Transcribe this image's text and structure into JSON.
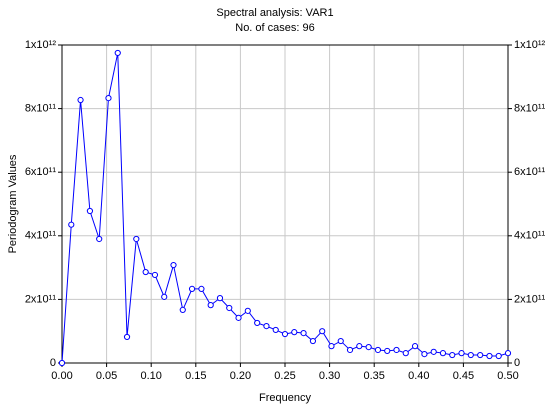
{
  "chart_data": {
    "type": "line",
    "title": "Spectral analysis: VAR1",
    "subtitle": "No. of cases: 96",
    "xlabel": "Frequency",
    "ylabel": "Periodogram Values",
    "x": [
      0,
      0.0104,
      0.0208,
      0.0313,
      0.0417,
      0.0521,
      0.0625,
      0.0729,
      0.0833,
      0.0938,
      0.1042,
      0.1146,
      0.125,
      0.1354,
      0.1458,
      0.1563,
      0.1667,
      0.1771,
      0.1875,
      0.1979,
      0.2083,
      0.2188,
      0.2292,
      0.2396,
      0.25,
      0.2604,
      0.2708,
      0.2813,
      0.2917,
      0.3021,
      0.3125,
      0.3229,
      0.3333,
      0.3438,
      0.3542,
      0.3646,
      0.375,
      0.3854,
      0.3958,
      0.4063,
      0.4167,
      0.4271,
      0.4375,
      0.4479,
      0.4583,
      0.4688,
      0.4792,
      0.4896,
      0.5
    ],
    "series": [
      {
        "name": "VAR1",
        "color": "#0000ff",
        "values": [
          0,
          435000000000.0,
          827000000000.0,
          478000000000.0,
          390000000000.0,
          833000000000.0,
          975000000000.0,
          82000000000.0,
          390000000000.0,
          286000000000.0,
          277000000000.0,
          208000000000.0,
          308000000000.0,
          167000000000.0,
          233000000000.0,
          233000000000.0,
          182000000000.0,
          204000000000.0,
          173000000000.0,
          142000000000.0,
          164000000000.0,
          126000000000.0,
          116000000000.0,
          104000000000.0,
          91000000000.0,
          97000000000.0,
          94000000000.0,
          69000000000.0,
          100000000000.0,
          53000000000.0,
          69000000000.0,
          41000000000.0,
          53000000000.0,
          50000000000.0,
          41000000000.0,
          38000000000.0,
          41000000000.0,
          31000000000.0,
          53000000000.0,
          28000000000.0,
          35000000000.0,
          31000000000.0,
          25000000000.0,
          31000000000.0,
          25000000000.0,
          25000000000.0,
          22000000000.0,
          22000000000.0,
          31000000000.0
        ]
      }
    ],
    "xlim": [
      0,
      0.5
    ],
    "xticks": [
      {
        "value": 0,
        "label": "0.00"
      },
      {
        "value": 0.05,
        "label": "0.05"
      },
      {
        "value": 0.1,
        "label": "0.10"
      },
      {
        "value": 0.15,
        "label": "0.15"
      },
      {
        "value": 0.2,
        "label": "0.20"
      },
      {
        "value": 0.25,
        "label": "0.25"
      },
      {
        "value": 0.3,
        "label": "0.30"
      },
      {
        "value": 0.35,
        "label": "0.35"
      },
      {
        "value": 0.4,
        "label": "0.40"
      },
      {
        "value": 0.45,
        "label": "0.45"
      },
      {
        "value": 0.5,
        "label": "0.50"
      }
    ],
    "ylim": [
      0,
      1000000000000.0
    ],
    "yticks": [
      0,
      {
        "value": 200000000000.0,
        "label": "2x10¹¹"
      },
      {
        "value": 400000000000.0,
        "label": "4x10¹¹"
      },
      {
        "value": 600000000000.0,
        "label": "6x10¹¹"
      },
      {
        "value": 800000000000.0,
        "label": "8x10¹¹"
      },
      {
        "value": 1000000000000.0,
        "label": "1x10¹²"
      }
    ],
    "grid": true,
    "markers": "circle"
  }
}
